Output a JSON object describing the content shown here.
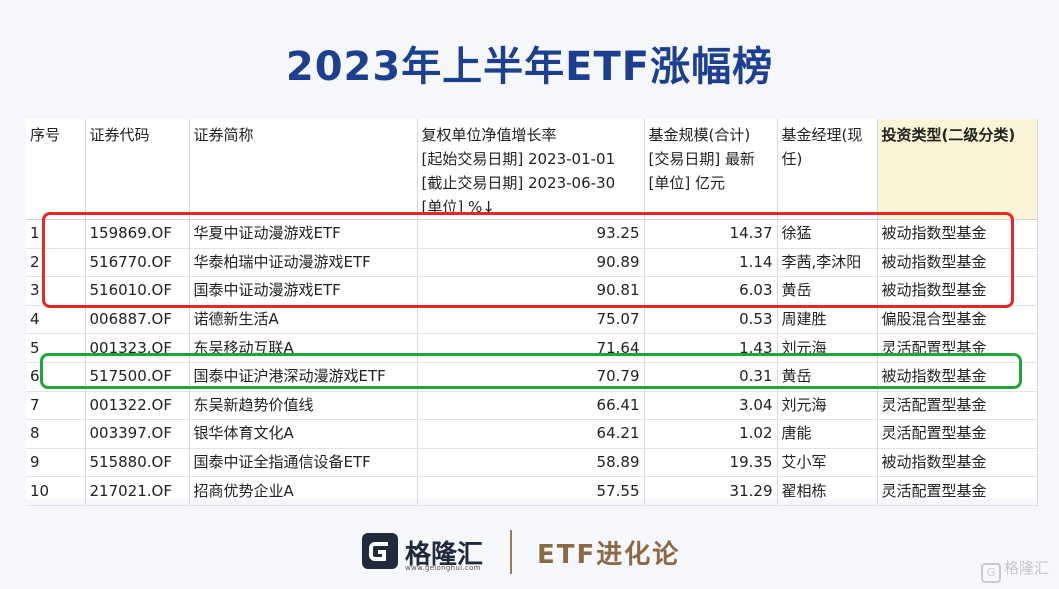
{
  "title": "2023年上半年ETF涨幅榜",
  "columns": [
    {
      "lines": [
        "序号"
      ]
    },
    {
      "lines": [
        "证券代码"
      ]
    },
    {
      "lines": [
        "证券简称"
      ]
    },
    {
      "lines": [
        "复权单位净值增长率",
        "[起始交易日期] 2023-01-01",
        "[截止交易日期] 2023-06-30",
        "[单位] %↓"
      ]
    },
    {
      "lines": [
        "基金规模(合计)",
        "[交易日期] 最新",
        "[单位] 亿元"
      ]
    },
    {
      "lines": [
        "基金经理(现",
        "任)"
      ]
    },
    {
      "lines": [
        "投资类型(二级分类)"
      ]
    }
  ],
  "rows": [
    [
      "1",
      "159869.OF",
      "华夏中证动漫游戏ETF",
      "93.25",
      "14.37",
      "徐猛",
      "被动指数型基金"
    ],
    [
      "2",
      "516770.OF",
      "华泰柏瑞中证动漫游戏ETF",
      "90.89",
      "1.14",
      "李茜,李沐阳",
      "被动指数型基金"
    ],
    [
      "3",
      "516010.OF",
      "国泰中证动漫游戏ETF",
      "90.81",
      "6.03",
      "黄岳",
      "被动指数型基金"
    ],
    [
      "4",
      "006887.OF",
      "诺德新生活A",
      "75.07",
      "0.53",
      "周建胜",
      "偏股混合型基金"
    ],
    [
      "5",
      "001323.OF",
      "东吴移动互联A",
      "71.64",
      "1.43",
      "刘元海",
      "灵活配置型基金"
    ],
    [
      "6",
      "517500.OF",
      "国泰中证沪港深动漫游戏ETF",
      "70.79",
      "0.31",
      "黄岳",
      "被动指数型基金"
    ],
    [
      "7",
      "001322.OF",
      "东吴新趋势价值线",
      "66.41",
      "3.04",
      "刘元海",
      "灵活配置型基金"
    ],
    [
      "8",
      "003397.OF",
      "银华体育文化A",
      "64.21",
      "1.02",
      "唐能",
      "灵活配置型基金"
    ],
    [
      "9",
      "515880.OF",
      "国泰中证全指通信设备ETF",
      "58.89",
      "19.35",
      "艾小军",
      "被动指数型基金"
    ],
    [
      "10",
      "217021.OF",
      "招商优势企业A",
      "57.55",
      "31.29",
      "翟相栋",
      "灵活配置型基金"
    ]
  ],
  "footer": {
    "logo_text": "格隆汇",
    "logo_url": "www.gelonghui.com",
    "tag": "ETF进化论",
    "watermark": "格隆汇",
    "logo_icon": "gelonghui-g-logo"
  },
  "colors": {
    "title": "#1d3f8f",
    "red_box": "#ea2525",
    "green_box": "#24a339",
    "header_highlight": "#fbf4d6"
  }
}
